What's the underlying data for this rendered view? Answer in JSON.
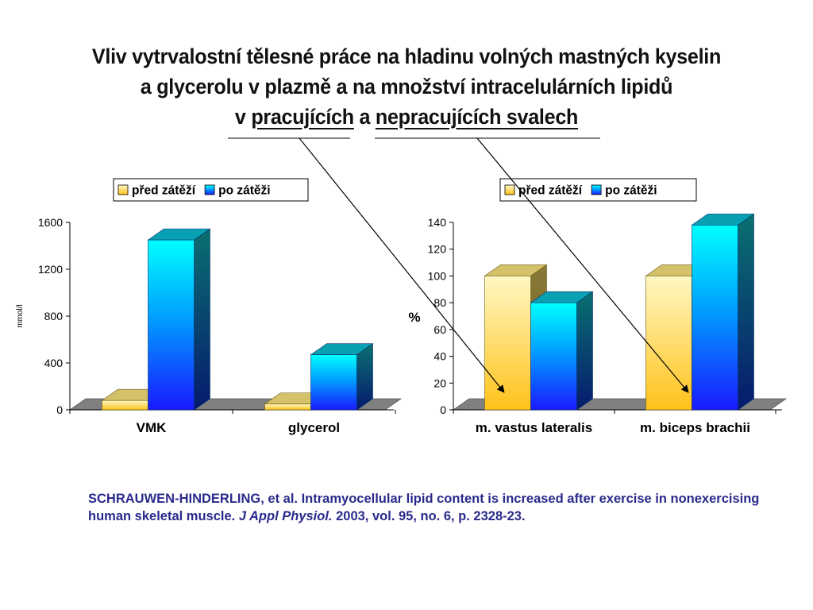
{
  "title": {
    "line1": "Vliv vytrvalostní tělesné práce na hladinu volných mastných kyselin",
    "line2": "a glycerolu v plazmě a na množství intracelulárních lipidů",
    "line3_prefix": "v ",
    "line3_working": "pracujících",
    "line3_mid": " a ",
    "line3_nonworking": "nepracujících svalech"
  },
  "citation": {
    "text1": "SCHRAUWEN-HINDERLING, et al. Intramyocellular lipid content is increased after exercise in nonexercising human skeletal muscle. ",
    "journal": "J Appl Physiol.",
    "text2": " 2003, vol. 95, no. 6, p. 2328-23."
  },
  "colors": {
    "before": "#ffd24a",
    "after": "#00c8ff",
    "floor": "#808080",
    "citation": "#2a2a8c"
  },
  "chart_data": [
    {
      "type": "bar",
      "categories": [
        "VMK",
        "glycerol"
      ],
      "series": [
        {
          "name": "před zátěží",
          "values": [
            80,
            50
          ]
        },
        {
          "name": "po zátěži",
          "values": [
            1450,
            470
          ]
        }
      ],
      "ylabel": "mmol/l",
      "ylim": [
        0,
        1600
      ],
      "yticks": [
        0,
        400,
        800,
        1200,
        1600
      ],
      "legend": "top-right",
      "grid": false
    },
    {
      "type": "bar",
      "categories": [
        "m. vastus lateralis",
        "m. biceps brachii"
      ],
      "series": [
        {
          "name": "před zátěží",
          "values": [
            100,
            100
          ]
        },
        {
          "name": "po zátěži",
          "values": [
            80,
            138
          ]
        }
      ],
      "ylabel": "%",
      "ylim": [
        0,
        140
      ],
      "yticks": [
        0,
        20,
        40,
        60,
        80,
        100,
        120,
        140
      ],
      "legend": "top-right",
      "grid": false
    }
  ]
}
